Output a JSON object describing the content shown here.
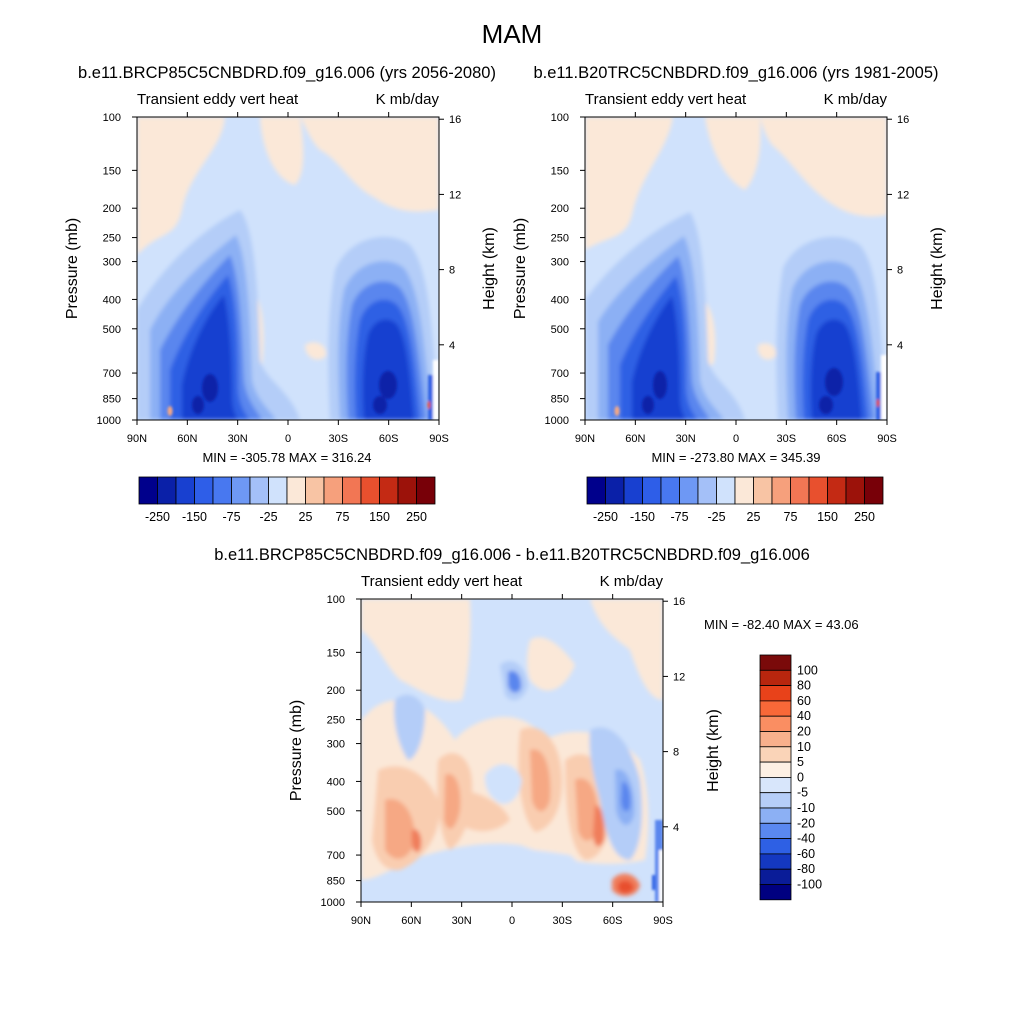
{
  "chart_data": {
    "type": "contour",
    "season": "MAM",
    "panels": [
      {
        "id": "future",
        "title": "b.e11.BRCP85C5CNBDRD.f09_g16.006 (yrs 2056-2080)",
        "left_label": "Transient eddy vert heat",
        "right_label": "K mb/day",
        "ylabel": "Pressure (mb)",
        "ylabel_right": "Height (km)",
        "xticks": [
          "90N",
          "60N",
          "30N",
          "0",
          "30S",
          "60S",
          "90S"
        ],
        "yticks": [
          100,
          150,
          200,
          250,
          300,
          400,
          500,
          700,
          850,
          1000
        ],
        "height_ticks": [
          16,
          12,
          8,
          4
        ],
        "ylim": [
          1000,
          100
        ],
        "stats": "MIN = -305.78  MAX = 316.24",
        "min": -305.78,
        "max": 316.24
      },
      {
        "id": "present",
        "title": "b.e11.B20TRC5CNBDRD.f09_g16.006 (yrs 1981-2005)",
        "left_label": "Transient eddy vert heat",
        "right_label": "K mb/day",
        "ylabel": "Pressure (mb)",
        "ylabel_right": "Height (km)",
        "xticks": [
          "90N",
          "60N",
          "30N",
          "0",
          "30S",
          "60S",
          "90S"
        ],
        "yticks": [
          100,
          150,
          200,
          250,
          300,
          400,
          500,
          700,
          850,
          1000
        ],
        "height_ticks": [
          16,
          12,
          8,
          4
        ],
        "ylim": [
          1000,
          100
        ],
        "stats": "MIN = -273.80  MAX = 345.39",
        "min": -273.8,
        "max": 345.39
      },
      {
        "id": "difference",
        "title": "b.e11.BRCP85C5CNBDRD.f09_g16.006 - b.e11.B20TRC5CNBDRD.f09_g16.006",
        "left_label": "Transient eddy vert heat",
        "right_label": "K mb/day",
        "ylabel": "Pressure (mb)",
        "ylabel_right": "Height (km)",
        "xticks": [
          "90N",
          "60N",
          "30N",
          "0",
          "30S",
          "60S",
          "90S"
        ],
        "yticks": [
          100,
          150,
          200,
          250,
          300,
          400,
          500,
          700,
          850,
          1000
        ],
        "height_ticks": [
          16,
          12,
          8,
          4
        ],
        "ylim": [
          1000,
          100
        ],
        "stats": "MIN = -82.40  MAX =  43.06",
        "min": -82.4,
        "max": 43.06
      }
    ],
    "colorbar_main": {
      "orientation": "horizontal",
      "labels": [
        "-250",
        "-150",
        "-75",
        "-25",
        "25",
        "75",
        "150",
        "250"
      ],
      "colors": [
        "#00008c",
        "#0a20a8",
        "#1840d0",
        "#2e5ee8",
        "#4878f0",
        "#6e98f4",
        "#a4c0f8",
        "#d0e2fc",
        "#fbe8d8",
        "#f8c4a4",
        "#f6a07c",
        "#f27654",
        "#e8502e",
        "#c42a14",
        "#9c120a",
        "#780008"
      ]
    },
    "colorbar_diff": {
      "orientation": "vertical",
      "labels": [
        "100",
        "80",
        "60",
        "40",
        "20",
        "10",
        "5",
        "0",
        "-5",
        "-10",
        "-20",
        "-40",
        "-60",
        "-80",
        "-100"
      ],
      "colors": [
        "#7a0a0a",
        "#b8260e",
        "#e8421a",
        "#f86838",
        "#fa8e62",
        "#f8b08c",
        "#fad4b8",
        "#fdf0e4",
        "#d8e6fb",
        "#b6cef8",
        "#8cb0f4",
        "#5a88f0",
        "#2e60e4",
        "#1438c0",
        "#0a1c98",
        "#000080"
      ]
    },
    "palette": {
      "base": "#d0e2fc",
      "pos_light": "#fbe8d8",
      "neg1": "#b4cdf8",
      "neg2": "#8cb0f4",
      "neg3": "#5a86ee",
      "neg4": "#2f60e4",
      "neg5": "#1640d0",
      "pos1": "#f9cdb0",
      "pos2": "#f6a884",
      "pos3": "#f07e5c"
    }
  }
}
